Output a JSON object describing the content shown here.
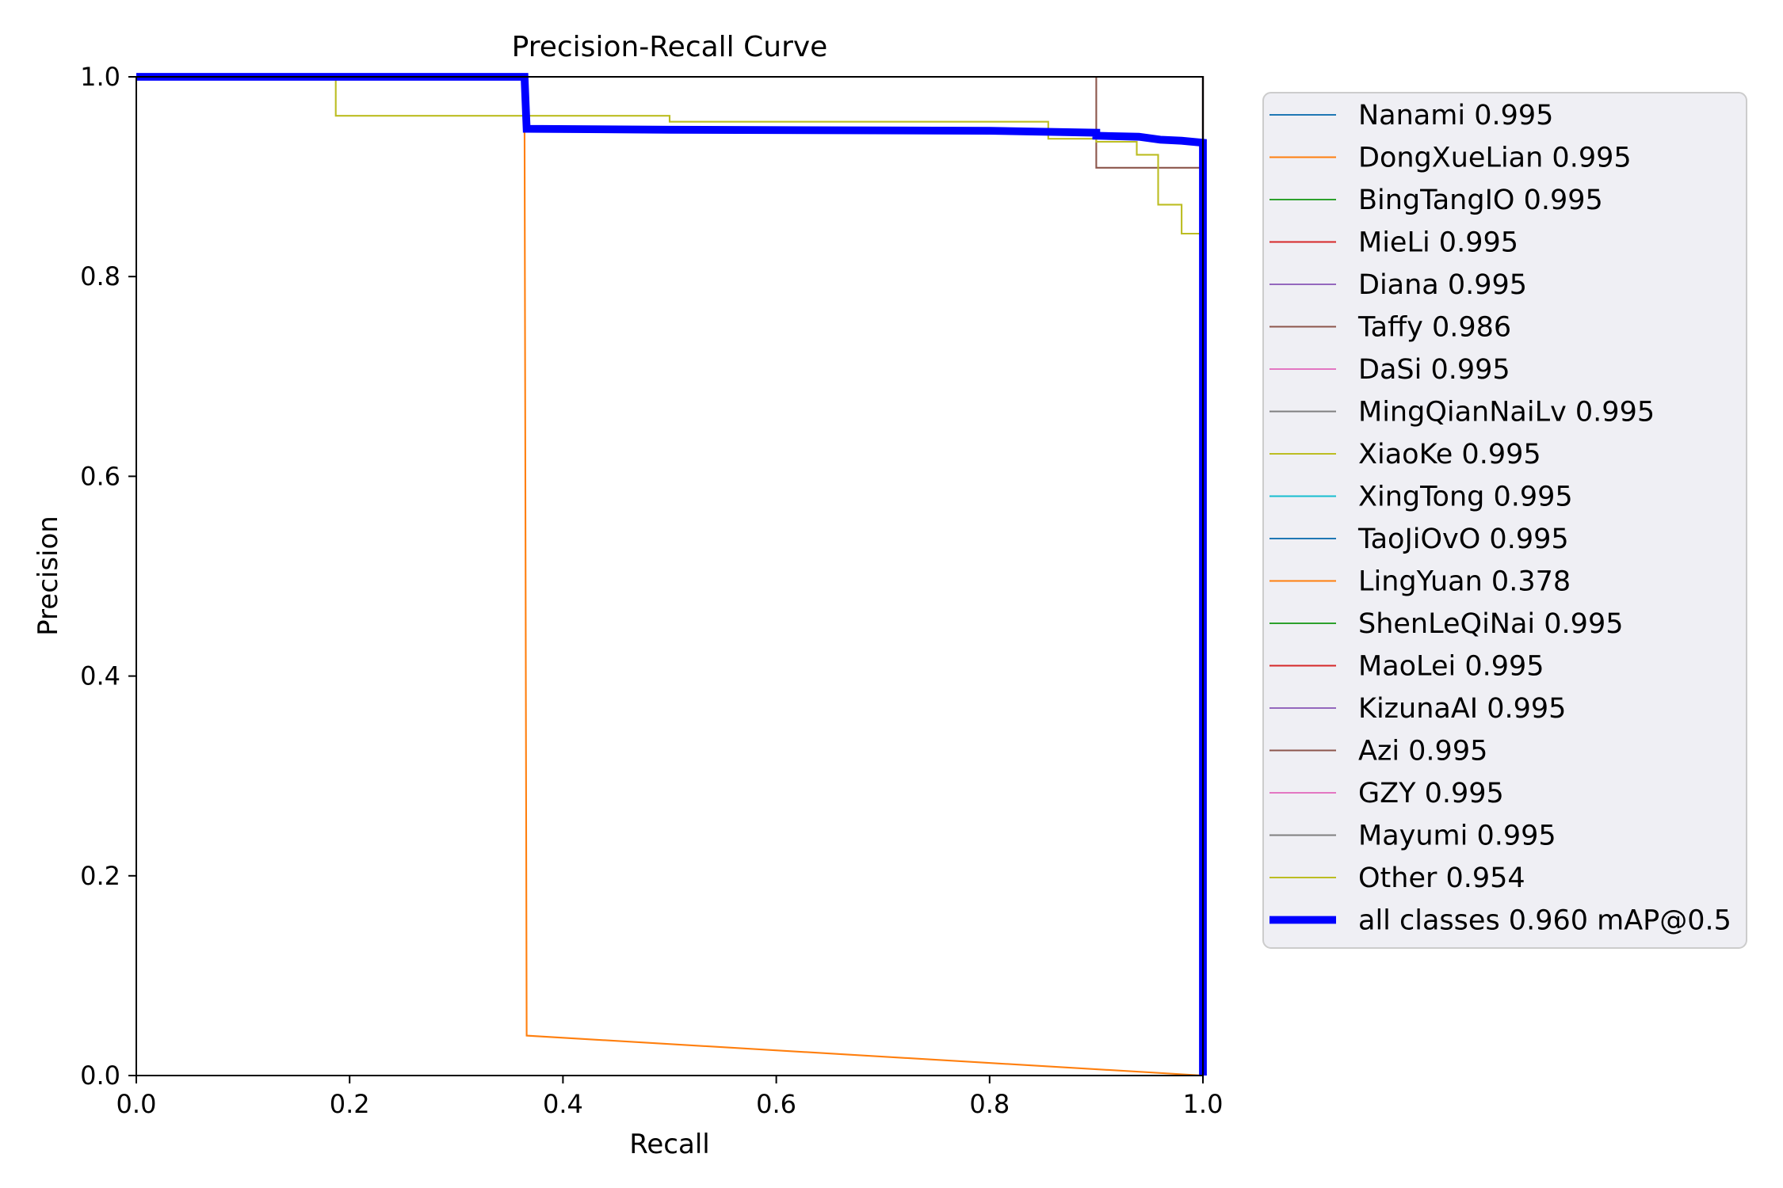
{
  "chart_data": {
    "type": "line",
    "title": "Precision-Recall Curve",
    "xlabel": "Recall",
    "ylabel": "Precision",
    "xlim": [
      0.0,
      1.0
    ],
    "ylim": [
      0.0,
      1.0
    ],
    "xticks": [
      "0.0",
      "0.2",
      "0.4",
      "0.6",
      "0.8",
      "1.0"
    ],
    "yticks": [
      "0.0",
      "0.2",
      "0.4",
      "0.6",
      "0.8",
      "1.0"
    ],
    "grid": false,
    "legend_position": "outside-right",
    "series": [
      {
        "name": "Nanami 0.995",
        "color": "#1f77b4",
        "width": 1.5,
        "points": [
          [
            0,
            1
          ],
          [
            1,
            1
          ],
          [
            1,
            0
          ]
        ]
      },
      {
        "name": "DongXueLian 0.995",
        "color": "#ff7f0e",
        "width": 1.5,
        "points": [
          [
            0,
            1
          ],
          [
            1,
            1
          ],
          [
            1,
            0
          ]
        ]
      },
      {
        "name": "BingTangIO 0.995",
        "color": "#2ca02c",
        "width": 1.5,
        "points": [
          [
            0,
            1
          ],
          [
            1,
            1
          ],
          [
            1,
            0
          ]
        ]
      },
      {
        "name": "MieLi 0.995",
        "color": "#d62728",
        "width": 1.5,
        "points": [
          [
            0,
            1
          ],
          [
            1,
            1
          ],
          [
            1,
            0
          ]
        ]
      },
      {
        "name": "Diana 0.995",
        "color": "#9467bd",
        "width": 1.5,
        "points": [
          [
            0,
            1
          ],
          [
            1,
            1
          ],
          [
            1,
            0
          ]
        ]
      },
      {
        "name": "Taffy 0.986",
        "color": "#8c564b",
        "width": 1.5,
        "points": [
          [
            0,
            1
          ],
          [
            0.9,
            1
          ],
          [
            0.9,
            0.909
          ],
          [
            1,
            0.909
          ],
          [
            1,
            0
          ]
        ]
      },
      {
        "name": "DaSi 0.995",
        "color": "#e377c2",
        "width": 1.5,
        "points": [
          [
            0,
            1
          ],
          [
            1,
            1
          ],
          [
            1,
            0
          ]
        ]
      },
      {
        "name": "MingQianNaiLv 0.995",
        "color": "#7f7f7f",
        "width": 1.5,
        "points": [
          [
            0,
            1
          ],
          [
            1,
            1
          ],
          [
            1,
            0
          ]
        ]
      },
      {
        "name": "XiaoKe 0.995",
        "color": "#bcbd22",
        "width": 1.5,
        "points": [
          [
            0,
            1
          ],
          [
            1,
            1
          ],
          [
            1,
            0
          ]
        ]
      },
      {
        "name": "XingTong 0.995",
        "color": "#17becf",
        "width": 1.5,
        "points": [
          [
            0,
            1
          ],
          [
            1,
            1
          ],
          [
            1,
            0
          ]
        ]
      },
      {
        "name": "TaoJiOvO 0.995",
        "color": "#1f77b4",
        "width": 1.5,
        "points": [
          [
            0,
            1
          ],
          [
            1,
            1
          ],
          [
            1,
            0
          ]
        ]
      },
      {
        "name": "LingYuan 0.378",
        "color": "#ff7f0e",
        "width": 1.5,
        "points": [
          [
            0,
            1
          ],
          [
            0.364,
            1
          ],
          [
            0.364,
            0.96
          ],
          [
            0.366,
            0.04
          ],
          [
            1,
            0
          ]
        ]
      },
      {
        "name": "ShenLeQiNai 0.995",
        "color": "#2ca02c",
        "width": 1.5,
        "points": [
          [
            0,
            1
          ],
          [
            1,
            1
          ],
          [
            1,
            0
          ]
        ]
      },
      {
        "name": "MaoLei 0.995",
        "color": "#d62728",
        "width": 1.5,
        "points": [
          [
            0,
            1
          ],
          [
            1,
            1
          ],
          [
            1,
            0
          ]
        ]
      },
      {
        "name": "KizunaAI 0.995",
        "color": "#9467bd",
        "width": 1.5,
        "points": [
          [
            0,
            1
          ],
          [
            1,
            1
          ],
          [
            1,
            0
          ]
        ]
      },
      {
        "name": "Azi 0.995",
        "color": "#8c564b",
        "width": 1.5,
        "points": [
          [
            0,
            1
          ],
          [
            1,
            1
          ],
          [
            1,
            0
          ]
        ]
      },
      {
        "name": "GZY 0.995",
        "color": "#e377c2",
        "width": 1.5,
        "points": [
          [
            0,
            1
          ],
          [
            1,
            1
          ],
          [
            1,
            0
          ]
        ]
      },
      {
        "name": "Mayumi 0.995",
        "color": "#7f7f7f",
        "width": 1.5,
        "points": [
          [
            0,
            1
          ],
          [
            1,
            1
          ],
          [
            1,
            0
          ]
        ]
      },
      {
        "name": "Other 0.954",
        "color": "#bcbd22",
        "width": 1.5,
        "points": [
          [
            0,
            1
          ],
          [
            0.187,
            1
          ],
          [
            0.187,
            0.961
          ],
          [
            0.5,
            0.961
          ],
          [
            0.5,
            0.955
          ],
          [
            0.855,
            0.955
          ],
          [
            0.855,
            0.938
          ],
          [
            0.9,
            0.938
          ],
          [
            0.9,
            0.935
          ],
          [
            0.938,
            0.935
          ],
          [
            0.938,
            0.922
          ],
          [
            0.958,
            0.922
          ],
          [
            0.958,
            0.872
          ],
          [
            0.98,
            0.872
          ],
          [
            0.98,
            0.843
          ],
          [
            1,
            0.843
          ],
          [
            1,
            0
          ]
        ]
      },
      {
        "name": "all classes 0.960 mAP@0.5",
        "color": "#0000ff",
        "width": 7,
        "points": [
          [
            0,
            1
          ],
          [
            0.364,
            1
          ],
          [
            0.366,
            0.948
          ],
          [
            0.5,
            0.947
          ],
          [
            0.8,
            0.946
          ],
          [
            0.9,
            0.944
          ],
          [
            0.9,
            0.941
          ],
          [
            0.94,
            0.94
          ],
          [
            0.96,
            0.937
          ],
          [
            0.98,
            0.936
          ],
          [
            1,
            0.934
          ],
          [
            1,
            0
          ]
        ]
      }
    ]
  }
}
